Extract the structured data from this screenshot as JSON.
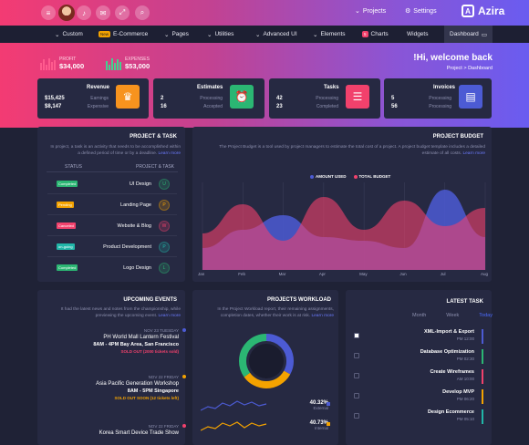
{
  "header": {
    "projects_label": "Projects",
    "settings_label": "Settings",
    "brand": "Azira",
    "brand_mark": "A"
  },
  "nav": {
    "items": [
      "Custom",
      "E-Commerce",
      "Pages",
      "Utilities",
      "Advanced UI",
      "Elements",
      "Charts",
      "Widgets",
      "Dashboard"
    ],
    "ecommerce_badge": "New",
    "charts_badge": "5"
  },
  "hero": {
    "profit_label": "PROFIT",
    "profit_value": "$34,000",
    "expenses_label": "EXPENSES",
    "expenses_value": "$53,000",
    "welcome": "!Hi, welcome back",
    "breadcrumb": "Project  >  Dashboard"
  },
  "cards": [
    {
      "title": "Revenue",
      "v1": "$15,425",
      "v2": "$8,147",
      "l1": "Earnings",
      "l2": "Expensive",
      "color": "#f7931e",
      "icon": "money-bag-icon"
    },
    {
      "title": "Estimates",
      "v1": "2",
      "v2": "16",
      "l1": "Processing",
      "l2": "Accepted",
      "color": "#2bb673",
      "icon": "alarm-clock-icon"
    },
    {
      "title": "Tasks",
      "v1": "42",
      "v2": "23",
      "l1": "Processing",
      "l2": "Completed",
      "color": "#f1416c",
      "icon": "clipboard-icon"
    },
    {
      "title": "Invoices",
      "v1": "5",
      "v2": "56",
      "l1": "Processing",
      "l2": "Processing",
      "color": "#4c5bd4",
      "icon": "invoice-icon"
    }
  ],
  "project_task": {
    "title": "PROJECT & TASK",
    "desc": "In project, a task is an activity that needs to be accomplished within a defined period of time or by a deadline.",
    "learn": "Learn more",
    "col_status": "STATUS",
    "col_task": "PROJECT & TASK",
    "rows": [
      {
        "status": "Completed",
        "name": "UI Design",
        "letter": "U",
        "color": "#2bb673"
      },
      {
        "status": "Pending",
        "name": "Landing Page",
        "letter": "P",
        "color": "#f3a200"
      },
      {
        "status": "Canceled",
        "name": "Website & Blog",
        "letter": "W",
        "color": "#f1416c"
      },
      {
        "status": "on-going",
        "name": "Product Development",
        "letter": "P",
        "color": "#21b6a8"
      },
      {
        "status": "Completed",
        "name": "Logo Design",
        "letter": "L",
        "color": "#2bb673"
      }
    ]
  },
  "budget": {
    "title": "PROJECT BUDGET",
    "desc": "The Project Budget is a tool used by project managers to estimate the total cost of a project. A project budget template includes a detailed estimate of all costs.",
    "learn": "Learn more",
    "legend1": "AMOUNT USED",
    "legend2": "TOTAL BUDGET",
    "months": [
      "Jan",
      "Feb",
      "Mar",
      "Apr",
      "May",
      "Jun",
      "Jul",
      "Aug"
    ]
  },
  "chart_data": {
    "type": "area",
    "x": [
      "Jan",
      "Feb",
      "Mar",
      "Apr",
      "May",
      "Jun",
      "Jul",
      "Aug"
    ],
    "series": [
      {
        "name": "AMOUNT USED",
        "values": [
          30,
          55,
          75,
          45,
          40,
          30,
          110,
          45
        ],
        "color": "#4c5bd4"
      },
      {
        "name": "TOTAL BUDGET",
        "values": [
          50,
          90,
          40,
          100,
          55,
          95,
          60,
          85
        ],
        "color": "#f1416c"
      }
    ],
    "ylim": [
      0,
      120
    ],
    "grid": true
  },
  "events": {
    "title": "UPCOMING EVENTS",
    "desc": "It had the latest news and notes from the championship, while previewing the upcoming event.",
    "learn": "Learn more",
    "items": [
      {
        "date": "NOV 23  TUESDAY",
        "title": "PH World Mall Lantern Festival",
        "place": "8AM - 4PM Bay Area, San Francisco",
        "status": "SOLD OUT (2000 tickets sold)",
        "color": "#4c5bd4"
      },
      {
        "date": "NOV 22  FRIDAY",
        "title": "Asia Pacific Generation Workshop",
        "place": "8AM - 5PM Singapore",
        "status": "SOLD OUT SOON (12 tickets left)",
        "color": "#f3a200"
      },
      {
        "date": "NOV 22  FRIDAY",
        "title": "Korea Smart Device Trade Show",
        "place": "",
        "status": "",
        "color": "#f1416c"
      }
    ]
  },
  "workload": {
    "title": "PROJECTS WORKLOAD",
    "desc": "In the Project Workload report, their remaining assignments, completion dates, whether their work is at risk.",
    "learn": "Learn more",
    "rows": [
      {
        "pct": "40.32%",
        "label": "External",
        "color": "#4c5bd4"
      },
      {
        "pct": "40.73%",
        "label": "Internal",
        "color": "#f3a200"
      }
    ]
  },
  "donut": {
    "type": "pie",
    "segments": [
      {
        "value": 33,
        "color": "#4c5bd4"
      },
      {
        "value": 32,
        "color": "#f3a200"
      },
      {
        "value": 35,
        "color": "#2bb673"
      }
    ]
  },
  "latest": {
    "title": "LATEST TASK",
    "tabs": [
      "Month",
      "Week",
      "Today"
    ],
    "items": [
      {
        "name": "XML-Import & Export",
        "time": "PM 12:00",
        "checked": true,
        "color": "#4c5bd4"
      },
      {
        "name": "Database Optimization",
        "time": "PM 02:30",
        "checked": false,
        "color": "#2bb673"
      },
      {
        "name": "Create Wireframes",
        "time": "AM 10:00",
        "checked": false,
        "color": "#f1416c"
      },
      {
        "name": "Develop MVP",
        "time": "PM 06:20",
        "checked": false,
        "color": "#f3a200"
      },
      {
        "name": "Design Ecommerce",
        "time": "PM 05:10",
        "checked": false,
        "color": "#21b6a8"
      }
    ]
  }
}
